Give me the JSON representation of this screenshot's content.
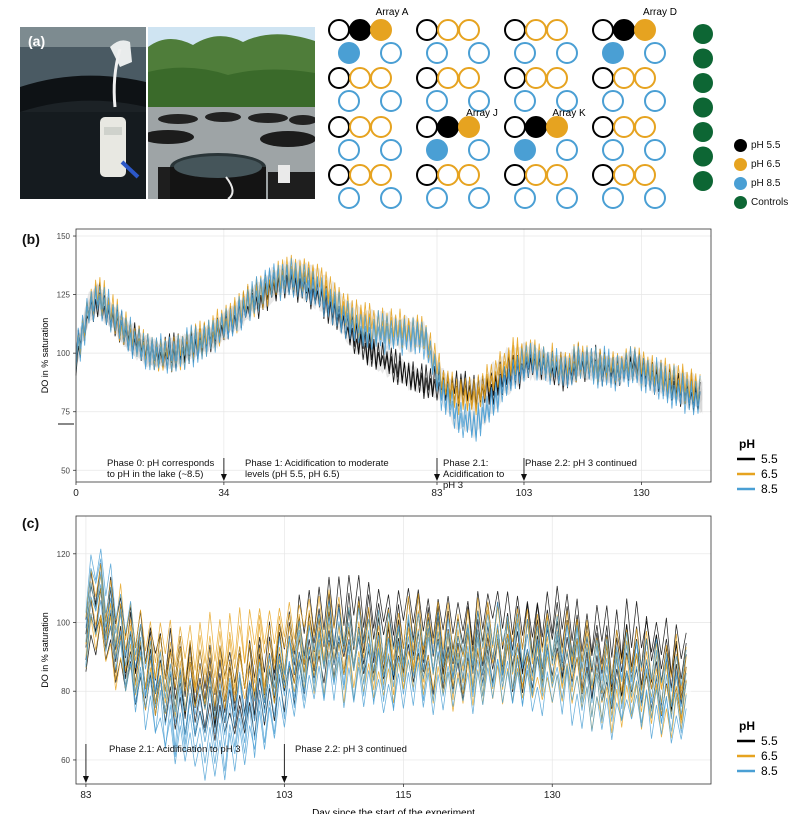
{
  "panel_a": {
    "label": "(a)",
    "array_labels": {
      "a": "Array A",
      "d": "Array D",
      "j": "Array J",
      "k": "Array K"
    },
    "legend": [
      {
        "label": "pH 5.5",
        "color": "#000000"
      },
      {
        "label": "pH 6.5",
        "color": "#e6a320"
      },
      {
        "label": "pH 8.5",
        "color": "#4a9fd4"
      },
      {
        "label": "Controls",
        "color": "#0d6634"
      }
    ]
  },
  "colors": {
    "ph55": "#000000",
    "ph65": "#e6a320",
    "ph85": "#4a9fd4",
    "control": "#0d6634",
    "band": "#bdbdbd"
  },
  "chart_data": [
    {
      "panel": "(b)",
      "type": "line",
      "ylabel": "DO in % saturation",
      "xlabel": "",
      "xlim": [
        0,
        146
      ],
      "ylim": [
        45,
        153
      ],
      "xticks": [
        0,
        34,
        83,
        103,
        130
      ],
      "yticks": [
        50,
        75,
        100,
        125,
        150
      ],
      "legend_title": "pH",
      "series": [
        {
          "name": "5.5",
          "color": "#000000",
          "points": [
            [
              0,
              99
            ],
            [
              3,
              118
            ],
            [
              5,
              123
            ],
            [
              8,
              115
            ],
            [
              12,
              107
            ],
            [
              16,
              101
            ],
            [
              20,
              99
            ],
            [
              24,
              101
            ],
            [
              28,
              104
            ],
            [
              32,
              108
            ],
            [
              36,
              114
            ],
            [
              40,
              120
            ],
            [
              44,
              126
            ],
            [
              48,
              131
            ],
            [
              52,
              129
            ],
            [
              56,
              124
            ],
            [
              60,
              116
            ],
            [
              64,
              106
            ],
            [
              68,
              100
            ],
            [
              72,
              96
            ],
            [
              76,
              91
            ],
            [
              80,
              87
            ],
            [
              82,
              86
            ],
            [
              84,
              86
            ],
            [
              88,
              85
            ],
            [
              92,
              83
            ],
            [
              96,
              86
            ],
            [
              100,
              91
            ],
            [
              104,
              95
            ],
            [
              108,
              94
            ],
            [
              112,
              91
            ],
            [
              116,
              95
            ],
            [
              120,
              94
            ],
            [
              124,
              92
            ],
            [
              128,
              95
            ],
            [
              132,
              91
            ],
            [
              136,
              87
            ],
            [
              140,
              84
            ],
            [
              144,
              81
            ]
          ]
        },
        {
          "name": "6.5",
          "color": "#e6a320",
          "points": [
            [
              0,
              99
            ],
            [
              3,
              120
            ],
            [
              5,
              125
            ],
            [
              8,
              117
            ],
            [
              12,
              108
            ],
            [
              16,
              101
            ],
            [
              20,
              99
            ],
            [
              24,
              101
            ],
            [
              28,
              105
            ],
            [
              32,
              109
            ],
            [
              36,
              116
            ],
            [
              40,
              122
            ],
            [
              44,
              128
            ],
            [
              48,
              133
            ],
            [
              52,
              134
            ],
            [
              56,
              130
            ],
            [
              60,
              122
            ],
            [
              64,
              115
            ],
            [
              68,
              112
            ],
            [
              72,
              111
            ],
            [
              76,
              110
            ],
            [
              80,
              108
            ],
            [
              82,
              98
            ],
            [
              84,
              88
            ],
            [
              88,
              82
            ],
            [
              92,
              81
            ],
            [
              96,
              90
            ],
            [
              100,
              98
            ],
            [
              104,
              99
            ],
            [
              108,
              96
            ],
            [
              112,
              94
            ],
            [
              116,
              96
            ],
            [
              120,
              95
            ],
            [
              124,
              93
            ],
            [
              128,
              95
            ],
            [
              132,
              92
            ],
            [
              136,
              89
            ],
            [
              140,
              87
            ],
            [
              144,
              84
            ]
          ]
        },
        {
          "name": "8.5",
          "color": "#4a9fd4",
          "points": [
            [
              0,
              99
            ],
            [
              3,
              119
            ],
            [
              5,
              124
            ],
            [
              8,
              116
            ],
            [
              12,
              107
            ],
            [
              16,
              100
            ],
            [
              20,
              99
            ],
            [
              24,
              101
            ],
            [
              28,
              104
            ],
            [
              32,
              108
            ],
            [
              36,
              114
            ],
            [
              40,
              121
            ],
            [
              44,
              130
            ],
            [
              48,
              132
            ],
            [
              52,
              131
            ],
            [
              56,
              126
            ],
            [
              60,
              118
            ],
            [
              64,
              111
            ],
            [
              68,
              108
            ],
            [
              72,
              108
            ],
            [
              76,
              107
            ],
            [
              80,
              106
            ],
            [
              82,
              97
            ],
            [
              84,
              84
            ],
            [
              88,
              72
            ],
            [
              92,
              70
            ],
            [
              96,
              80
            ],
            [
              100,
              90
            ],
            [
              104,
              96
            ],
            [
              108,
              95
            ],
            [
              112,
              92
            ],
            [
              116,
              95
            ],
            [
              120,
              94
            ],
            [
              124,
              92
            ],
            [
              128,
              94
            ],
            [
              132,
              90
            ],
            [
              136,
              86
            ],
            [
              140,
              83
            ],
            [
              144,
              80
            ]
          ]
        }
      ],
      "annotations": [
        {
          "x": 0,
          "text": [
            "Phase 0: pH corresponds",
            "to pH in the lake (~8.5)"
          ],
          "arrow": false
        },
        {
          "x": 34,
          "text": [
            "Phase 1: Acidification to moderate",
            "levels (pH 5.5, pH 6.5)"
          ],
          "arrow": true
        },
        {
          "x": 83,
          "text": [
            "Phase 2.1:",
            "Acidification to",
            "pH 3"
          ],
          "arrow": true
        },
        {
          "x": 103,
          "text": [
            "Phase 2.2: pH 3 continued"
          ],
          "arrow": true
        }
      ]
    },
    {
      "panel": "(c)",
      "type": "line",
      "ylabel": "DO in % saturation",
      "xlabel": "Day since the start of the experiment",
      "xlim": [
        82,
        146
      ],
      "ylim": [
        53,
        131
      ],
      "xticks": [
        83,
        103,
        115,
        130
      ],
      "yticks": [
        60,
        80,
        100,
        120
      ],
      "legend_title": "pH",
      "series": [
        {
          "name": "5.5",
          "color": "#000000",
          "points": [
            [
              83,
              98
            ],
            [
              84,
              104
            ],
            [
              86,
              95
            ],
            [
              88,
              90
            ],
            [
              90,
              86
            ],
            [
              92,
              82
            ],
            [
              94,
              80
            ],
            [
              96,
              79
            ],
            [
              98,
              79
            ],
            [
              100,
              81
            ],
            [
              102,
              85
            ],
            [
              104,
              90
            ],
            [
              106,
              95
            ],
            [
              108,
              97
            ],
            [
              110,
              98
            ],
            [
              112,
              96
            ],
            [
              114,
              94
            ],
            [
              116,
              97
            ],
            [
              118,
              94
            ],
            [
              120,
              92
            ],
            [
              122,
              94
            ],
            [
              124,
              96
            ],
            [
              126,
              94
            ],
            [
              128,
              93
            ],
            [
              130,
              96
            ],
            [
              132,
              94
            ],
            [
              134,
              90
            ],
            [
              136,
              88
            ],
            [
              138,
              91
            ],
            [
              140,
              88
            ],
            [
              142,
              86
            ],
            [
              144,
              86
            ]
          ]
        },
        {
          "name": "6.5",
          "color": "#e6a320",
          "points": [
            [
              83,
              99
            ],
            [
              84,
              105
            ],
            [
              86,
              96
            ],
            [
              88,
              90
            ],
            [
              90,
              87
            ],
            [
              92,
              86
            ],
            [
              94,
              86
            ],
            [
              96,
              87
            ],
            [
              98,
              88
            ],
            [
              100,
              90
            ],
            [
              102,
              91
            ],
            [
              104,
              93
            ],
            [
              106,
              94
            ],
            [
              108,
              93
            ],
            [
              110,
              91
            ],
            [
              112,
              90
            ],
            [
              114,
              89
            ],
            [
              116,
              92
            ],
            [
              118,
              90
            ],
            [
              120,
              89
            ],
            [
              122,
              90
            ],
            [
              124,
              92
            ],
            [
              126,
              90
            ],
            [
              128,
              88
            ],
            [
              130,
              90
            ],
            [
              132,
              88
            ],
            [
              134,
              84
            ],
            [
              136,
              82
            ],
            [
              138,
              85
            ],
            [
              140,
              82
            ],
            [
              142,
              80
            ],
            [
              144,
              80
            ]
          ]
        },
        {
          "name": "8.5",
          "color": "#4a9fd4",
          "points": [
            [
              83,
              100
            ],
            [
              84,
              112
            ],
            [
              86,
              98
            ],
            [
              88,
              88
            ],
            [
              90,
              79
            ],
            [
              92,
              73
            ],
            [
              94,
              70
            ],
            [
              96,
              69
            ],
            [
              98,
              70
            ],
            [
              100,
              73
            ],
            [
              102,
              79
            ],
            [
              104,
              85
            ],
            [
              106,
              89
            ],
            [
              108,
              91
            ],
            [
              110,
              90
            ],
            [
              112,
              88
            ],
            [
              114,
              87
            ],
            [
              116,
              90
            ],
            [
              118,
              88
            ],
            [
              120,
              87
            ],
            [
              122,
              88
            ],
            [
              124,
              90
            ],
            [
              126,
              88
            ],
            [
              128,
              86
            ],
            [
              130,
              88
            ],
            [
              132,
              86
            ],
            [
              134,
              83
            ],
            [
              136,
              81
            ],
            [
              138,
              83
            ],
            [
              140,
              80
            ],
            [
              142,
              78
            ],
            [
              144,
              77
            ]
          ]
        }
      ],
      "annotations": [
        {
          "x": 83,
          "text": [
            "Phase 2.1: Acidification to pH 3"
          ],
          "arrow": true
        },
        {
          "x": 103,
          "text": [
            "Phase 2.2: pH 3 continued"
          ],
          "arrow": true
        }
      ]
    }
  ]
}
